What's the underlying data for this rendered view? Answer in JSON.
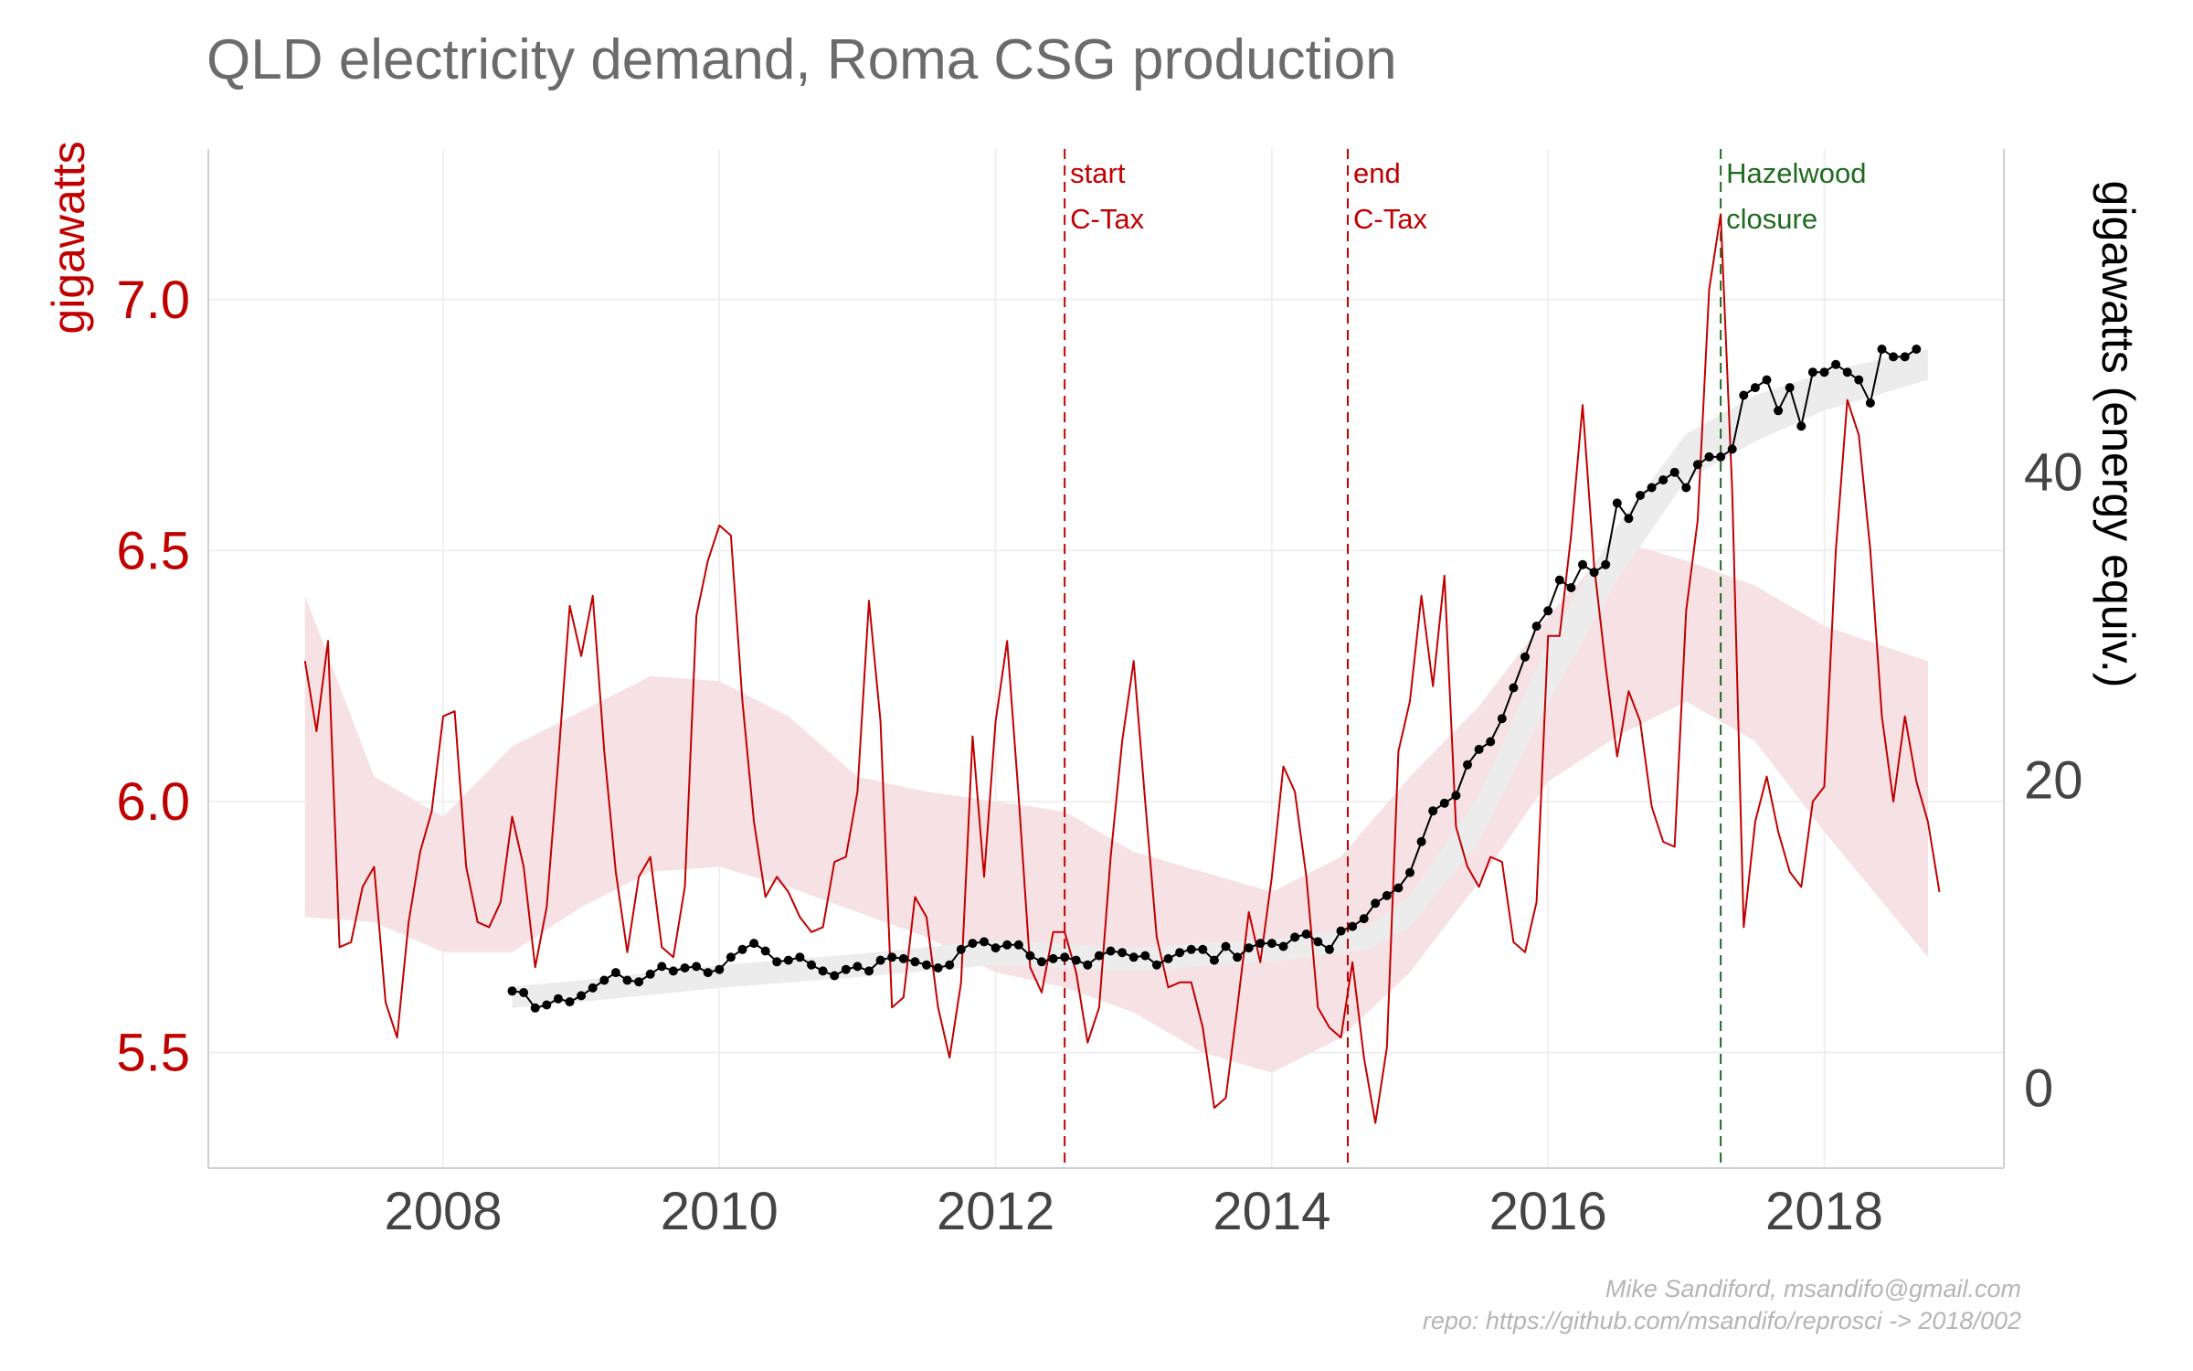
{
  "title": "QLD electricity demand, Roma CSG production",
  "caption": {
    "line1": "Mike Sandiford, msandifo@gmail.com",
    "line2": "repo: https://github.com/msandifo/reprosci -> 2018/002"
  },
  "colors": {
    "demand": "#c00000",
    "demand_band": "#f6e1e4",
    "csg": "#000000",
    "csg_band": "#ececec",
    "hazelwood": "#2e7d2e",
    "axis_text": "#444444",
    "grid": "#ececec"
  },
  "chart_data": {
    "type": "line",
    "x_axis": {
      "label": "",
      "range": [
        2006.3,
        2019.3
      ],
      "ticks": [
        2008,
        2010,
        2012,
        2014,
        2016,
        2018
      ]
    },
    "y_left": {
      "label": "gigawatts",
      "range": [
        5.27,
        7.3
      ],
      "ticks": [
        5.5,
        6.0,
        6.5,
        7.0
      ],
      "tick_labels": [
        "5.5",
        "6.0",
        "6.5",
        "7.0"
      ]
    },
    "y_right": {
      "label": "gigawatts (energy equiv.)",
      "range": [
        -5.2,
        61
      ],
      "ticks": [
        0,
        20,
        40
      ],
      "tick_labels": [
        "0",
        "20",
        "40"
      ]
    },
    "grid": true,
    "legend": "none",
    "annotations": [
      {
        "x": 2012.5,
        "line1": "start",
        "line2": "C-Tax",
        "color": "#c00000"
      },
      {
        "x": 2014.55,
        "line1": "end",
        "line2": "C-Tax",
        "color": "#c00000"
      },
      {
        "x": 2017.25,
        "line1": "Hazelwood",
        "line2": "closure",
        "color": "#1f6b1f"
      }
    ],
    "series": [
      {
        "name": "",
        "axis": "left",
        "x_start": 2007.0,
        "step": 0.0833333,
        "values": [
          6.28,
          6.14,
          6.32,
          5.71,
          5.72,
          5.83,
          5.87,
          5.6,
          5.53,
          5.76,
          5.9,
          5.98,
          6.17,
          6.18,
          5.87,
          5.76,
          5.75,
          5.8,
          5.97,
          5.87,
          5.67,
          5.79,
          6.08,
          6.39,
          6.29,
          6.41,
          6.1,
          5.86,
          5.7,
          5.85,
          5.89,
          5.71,
          5.69,
          5.83,
          6.37,
          6.48,
          6.55,
          6.53,
          6.2,
          5.96,
          5.81,
          5.85,
          5.82,
          5.77,
          5.74,
          5.75,
          5.88,
          5.89,
          6.02,
          6.4,
          6.16,
          5.59,
          5.61,
          5.81,
          5.77,
          5.59,
          5.49,
          5.64,
          6.13,
          5.85,
          6.16,
          6.32,
          6.01,
          5.67,
          5.62,
          5.74,
          5.74,
          5.66,
          5.52,
          5.59,
          5.89,
          6.12,
          6.28,
          6.0,
          5.73,
          5.63,
          5.64,
          5.64,
          5.55,
          5.39,
          5.41,
          5.59,
          5.78,
          5.68,
          5.85,
          6.07,
          6.02,
          5.85,
          5.59,
          5.55,
          5.53,
          5.68,
          5.49,
          5.36,
          5.51,
          6.1,
          6.2,
          6.41,
          6.23,
          6.45,
          5.95,
          5.87,
          5.83,
          5.89,
          5.88,
          5.72,
          5.7,
          5.8,
          6.33,
          6.33,
          6.53,
          6.79,
          6.47,
          6.27,
          6.09,
          6.22,
          6.16,
          5.99,
          5.92,
          5.91,
          6.38,
          6.56,
          7.02,
          7.17,
          6.62,
          5.75,
          5.96,
          6.05,
          5.94,
          5.86,
          5.83,
          6.0,
          6.03,
          6.5,
          6.8,
          6.73,
          6.5,
          6.17,
          6.0,
          6.17,
          6.04,
          5.96,
          5.82
        ]
      },
      {
        "name": "",
        "axis": "left",
        "role": "band",
        "x": [
          2007.0,
          2007.5,
          2008.0,
          2008.5,
          2009.0,
          2009.5,
          2010.0,
          2010.5,
          2011.0,
          2011.5,
          2012.0,
          2012.5,
          2013.0,
          2013.5,
          2014.0,
          2014.5,
          2015.0,
          2015.5,
          2016.0,
          2016.5,
          2017.0,
          2017.5,
          2018.0,
          2018.75
        ],
        "lower": [
          5.77,
          5.76,
          5.7,
          5.7,
          5.79,
          5.86,
          5.87,
          5.83,
          5.78,
          5.73,
          5.66,
          5.63,
          5.58,
          5.5,
          5.46,
          5.53,
          5.66,
          5.84,
          6.04,
          6.13,
          6.2,
          6.12,
          5.94,
          5.69
        ],
        "upper": [
          6.41,
          6.05,
          5.97,
          6.11,
          6.18,
          6.25,
          6.24,
          6.17,
          6.05,
          6.02,
          6.0,
          5.98,
          5.9,
          5.86,
          5.82,
          5.89,
          6.05,
          6.19,
          6.37,
          6.52,
          6.48,
          6.43,
          6.35,
          6.28
        ]
      },
      {
        "name": "",
        "axis": "right",
        "x_start": 2008.5,
        "step": 0.0833333,
        "values": [
          6.3,
          6.2,
          5.2,
          5.4,
          5.8,
          5.6,
          6.0,
          6.5,
          7.0,
          7.5,
          7.0,
          6.9,
          7.4,
          7.9,
          7.6,
          7.8,
          7.9,
          7.5,
          7.7,
          8.5,
          9.0,
          9.4,
          8.9,
          8.2,
          8.3,
          8.5,
          8.0,
          7.6,
          7.3,
          7.7,
          7.9,
          7.6,
          8.3,
          8.5,
          8.4,
          8.2,
          8.0,
          7.8,
          8.0,
          9.0,
          9.4,
          9.5,
          9.1,
          9.3,
          9.3,
          8.6,
          8.2,
          8.4,
          8.5,
          8.3,
          8.0,
          8.6,
          8.9,
          8.8,
          8.5,
          8.6,
          8.0,
          8.4,
          8.8,
          9.0,
          9.0,
          8.3,
          9.2,
          8.5,
          9.1,
          9.4,
          9.4,
          9.2,
          9.8,
          10.0,
          9.5,
          9.0,
          10.2,
          10.5,
          11.0,
          12.0,
          12.5,
          13.0,
          14.0,
          16.0,
          18.0,
          18.5,
          19.0,
          21.0,
          22.0,
          22.5,
          24.0,
          26.0,
          28.0,
          30.0,
          31.0,
          33.0,
          32.5,
          34.0,
          33.5,
          34.0,
          38.0,
          37.0,
          38.5,
          39.0,
          39.5,
          40.0,
          39.0,
          40.5,
          41.0,
          41.0,
          41.5,
          45.0,
          45.5,
          46.0,
          44.0,
          45.5,
          43.0,
          46.5,
          46.5,
          47.0,
          46.5,
          46.0,
          44.5,
          48.0,
          47.5,
          47.5,
          48.0
        ]
      },
      {
        "name": "",
        "axis": "right",
        "role": "band",
        "x": [
          2008.5,
          2009.0,
          2010.0,
          2011.0,
          2012.0,
          2013.0,
          2014.0,
          2014.7,
          2015.0,
          2015.5,
          2016.0,
          2016.5,
          2017.0,
          2017.5,
          2018.0,
          2018.75
        ],
        "lower": [
          5.2,
          5.6,
          6.5,
          7.2,
          8.0,
          7.6,
          8.2,
          9.0,
          10.5,
          16.0,
          25.0,
          33.0,
          39.5,
          42.0,
          44.0,
          46.0
        ],
        "upper": [
          6.6,
          7.0,
          8.0,
          8.7,
          9.6,
          9.1,
          9.7,
          10.5,
          12.5,
          19.0,
          29.0,
          36.5,
          42.5,
          45.0,
          46.5,
          48.0
        ]
      }
    ]
  }
}
